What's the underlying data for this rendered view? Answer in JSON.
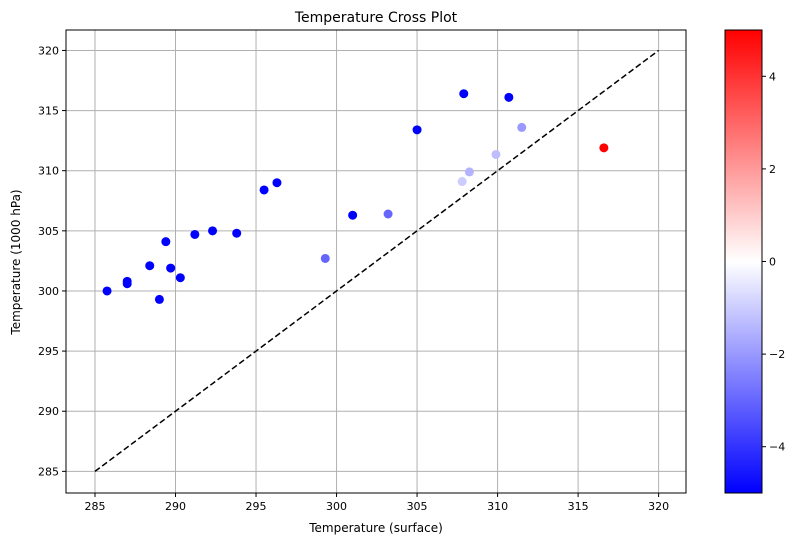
{
  "chart_data": {
    "type": "scatter",
    "title": "Temperature Cross Plot",
    "xlabel": "Temperature (surface)",
    "ylabel": "Temperature (1000 hPa)",
    "xlim": [
      283.2,
      321.7
    ],
    "ylim": [
      283.2,
      321.7
    ],
    "xticks": [
      285,
      290,
      295,
      300,
      305,
      310,
      315,
      320
    ],
    "yticks": [
      285,
      290,
      295,
      300,
      305,
      310,
      315,
      320
    ],
    "grid": true,
    "reference_line": {
      "x": [
        285,
        320
      ],
      "y": [
        285,
        320
      ],
      "style": "dashed",
      "color": "#000000"
    },
    "colormap": "bwr",
    "color_range": [
      -5,
      5
    ],
    "colorbar_ticks": [
      -4,
      -2,
      0,
      2,
      4
    ],
    "colorbar_tick_labels": [
      "−4",
      "−2",
      "0",
      "2",
      "4"
    ],
    "points": [
      {
        "x": 285.75,
        "y": 300.0,
        "c": -5
      },
      {
        "x": 287.0,
        "y": 300.8,
        "c": -5
      },
      {
        "x": 287.0,
        "y": 300.6,
        "c": -5
      },
      {
        "x": 288.4,
        "y": 302.1,
        "c": -5
      },
      {
        "x": 289.4,
        "y": 304.1,
        "c": -5
      },
      {
        "x": 289.0,
        "y": 299.3,
        "c": -5
      },
      {
        "x": 289.7,
        "y": 301.9,
        "c": -5
      },
      {
        "x": 290.3,
        "y": 301.1,
        "c": -5
      },
      {
        "x": 291.2,
        "y": 304.7,
        "c": -5
      },
      {
        "x": 292.3,
        "y": 305.0,
        "c": -5
      },
      {
        "x": 293.8,
        "y": 304.8,
        "c": -5
      },
      {
        "x": 295.5,
        "y": 308.4,
        "c": -5
      },
      {
        "x": 296.3,
        "y": 309.0,
        "c": -5
      },
      {
        "x": 299.3,
        "y": 302.7,
        "c": -3
      },
      {
        "x": 301.0,
        "y": 306.3,
        "c": -5
      },
      {
        "x": 303.2,
        "y": 306.4,
        "c": -3
      },
      {
        "x": 305.0,
        "y": 313.4,
        "c": -5
      },
      {
        "x": 307.9,
        "y": 316.4,
        "c": -5
      },
      {
        "x": 310.7,
        "y": 316.1,
        "c": -5
      },
      {
        "x": 307.8,
        "y": 309.1,
        "c": -1
      },
      {
        "x": 308.25,
        "y": 309.9,
        "c": -1.5
      },
      {
        "x": 309.9,
        "y": 311.35,
        "c": -1.3
      },
      {
        "x": 311.5,
        "y": 313.6,
        "c": -2
      },
      {
        "x": 316.6,
        "y": 311.9,
        "c": 5
      }
    ]
  }
}
